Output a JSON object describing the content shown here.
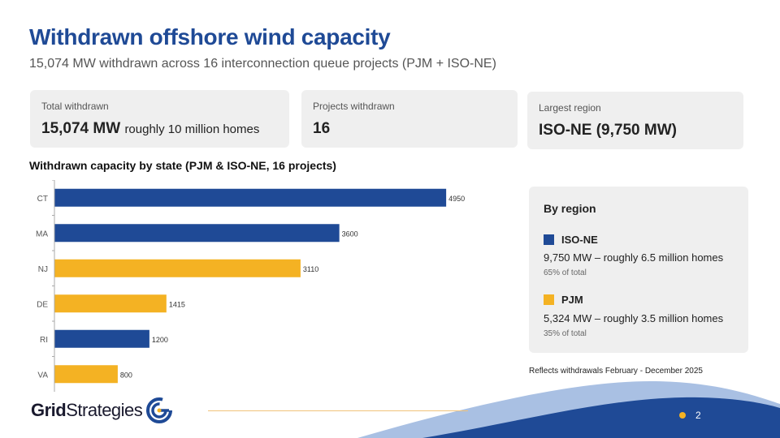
{
  "header": {
    "title": "Withdrawn offshore wind capacity",
    "subtitle": "15,074 MW withdrawn across 16 interconnection queue projects (PJM + ISO-NE)"
  },
  "cards": {
    "total": {
      "label": "Total withdrawn",
      "value": "15,074 MW",
      "note": "roughly 10 million homes"
    },
    "projects": {
      "label": "Projects withdrawn",
      "value": "16"
    },
    "largest": {
      "label": "Largest region",
      "value": "ISO-NE (9,750 MW)"
    }
  },
  "chart_title": "Withdrawn capacity by state  (PJM & ISO-NE, 16 projects)",
  "chart_data": {
    "type": "bar",
    "orientation": "horizontal",
    "categories": [
      "CT",
      "MA",
      "NJ",
      "DE",
      "RI",
      "VA"
    ],
    "values": [
      4950,
      3600,
      3110,
      1415,
      1200,
      800
    ],
    "value_labels": [
      "4950",
      "3600",
      "3110",
      "1415",
      "1200",
      "800"
    ],
    "regions": [
      "ISO-NE",
      "ISO-NE",
      "PJM",
      "PJM",
      "ISO-NE",
      "PJM"
    ],
    "xlim": [
      0,
      5000
    ],
    "grid": false,
    "colors": {
      "ISO-NE": "#1f4a96",
      "PJM": "#f4b223"
    }
  },
  "regions_panel": {
    "title": "By region",
    "items": [
      {
        "name": "ISO-NE",
        "desc": "9,750 MW – roughly 6.5 million homes",
        "pct": "65% of total",
        "color": "#1f4a96"
      },
      {
        "name": "PJM",
        "desc": "5,324 MW – roughly 3.5 million homes",
        "pct": "35% of total",
        "color": "#f4b223"
      }
    ]
  },
  "footnote": "Reflects withdrawals February - December 2025",
  "logo": {
    "part1": "Grid",
    "part2": "Strategies"
  },
  "page_number": "2"
}
